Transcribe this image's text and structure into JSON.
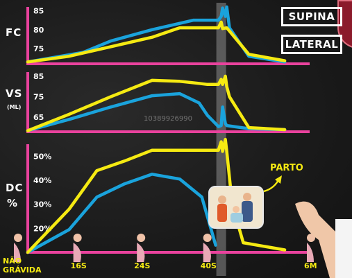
{
  "watermark": "10389926990",
  "legend": [
    {
      "label": "SUPINA",
      "color": "#1aa3dc"
    },
    {
      "label": "LATERAL",
      "color": "#f5ea12"
    }
  ],
  "annotation": {
    "label": "PARTO"
  },
  "colors": {
    "axis": "#e9429d",
    "supina": "#1aa3dc",
    "lateral": "#f5ea12",
    "text": "#ffffff",
    "birth_band": "#8a8a8a"
  },
  "x_axis": {
    "ticks": [
      {
        "label": "NÃO\nGRÁVIDA"
      },
      {
        "label": "16S"
      },
      {
        "label": "24S"
      },
      {
        "label": "40S"
      },
      {
        "label": "6M"
      }
    ]
  },
  "chart_data": [
    {
      "type": "line",
      "ylabel": "FC",
      "ylim": [
        71,
        86
      ],
      "yticks": [
        75,
        80,
        85
      ],
      "series": [
        {
          "name": "SUPINA",
          "color": "#1aa3dc",
          "x": [
            0,
            0.2,
            0.3,
            0.45,
            0.6,
            0.69,
            0.7,
            0.705,
            0.715,
            0.72,
            0.73,
            0.8,
            0.93
          ],
          "y": [
            71.5,
            74,
            77,
            80,
            82.5,
            82.5,
            83.5,
            85.7,
            83.5,
            86,
            80.5,
            73,
            71.5
          ]
        },
        {
          "name": "LATERAL",
          "color": "#f5ea12",
          "x": [
            0,
            0.15,
            0.3,
            0.45,
            0.55,
            0.68,
            0.69,
            0.7,
            0.705,
            0.72,
            0.8,
            0.93
          ],
          "y": [
            71.5,
            73,
            75.5,
            78,
            80.5,
            80.5,
            80.5,
            82,
            80.3,
            80.5,
            73.5,
            71.8
          ]
        }
      ]
    },
    {
      "type": "line",
      "ylabel": "VS",
      "ylabel_sub": "(ML)",
      "ylim": [
        58,
        87
      ],
      "yticks": [
        65,
        75,
        85
      ],
      "series": [
        {
          "name": "SUPINA",
          "color": "#1aa3dc",
          "x": [
            0,
            0.15,
            0.3,
            0.45,
            0.55,
            0.62,
            0.65,
            0.69,
            0.7,
            0.705,
            0.715,
            0.72,
            0.8,
            0.93
          ],
          "y": [
            58.5,
            64,
            70,
            75.5,
            76.5,
            72,
            66,
            60.5,
            61,
            70,
            62,
            61,
            59.5,
            59
          ]
        },
        {
          "name": "LATERAL",
          "color": "#f5ea12",
          "x": [
            0,
            0.15,
            0.3,
            0.45,
            0.55,
            0.62,
            0.65,
            0.69,
            0.7,
            0.705,
            0.715,
            0.72,
            0.73,
            0.8,
            0.93
          ],
          "y": [
            58.5,
            66.5,
            75,
            83,
            82.5,
            81.5,
            81,
            81,
            83.5,
            81,
            85,
            80,
            75,
            60,
            59
          ]
        }
      ]
    },
    {
      "type": "line",
      "ylabel": "DC",
      "ylabel_sub": "%",
      "ylim": [
        10,
        55
      ],
      "yticks": [
        20,
        30,
        40,
        50
      ],
      "tick_suffix": "%",
      "series": [
        {
          "name": "SUPINA",
          "color": "#1aa3dc",
          "x": [
            0,
            0.15,
            0.25,
            0.35,
            0.45,
            0.55,
            0.63,
            0.68
          ],
          "y": [
            10,
            19.5,
            33,
            38.5,
            42.5,
            40.5,
            33,
            13
          ]
        },
        {
          "name": "LATERAL",
          "color": "#f5ea12",
          "x": [
            0,
            0.15,
            0.25,
            0.35,
            0.45,
            0.55,
            0.65,
            0.69,
            0.7,
            0.705,
            0.715,
            0.72,
            0.74,
            0.78,
            0.93
          ],
          "y": [
            10,
            28,
            44,
            48,
            52.5,
            52.5,
            52.5,
            52.5,
            56,
            52,
            57,
            52,
            30,
            14,
            11
          ]
        }
      ]
    }
  ]
}
